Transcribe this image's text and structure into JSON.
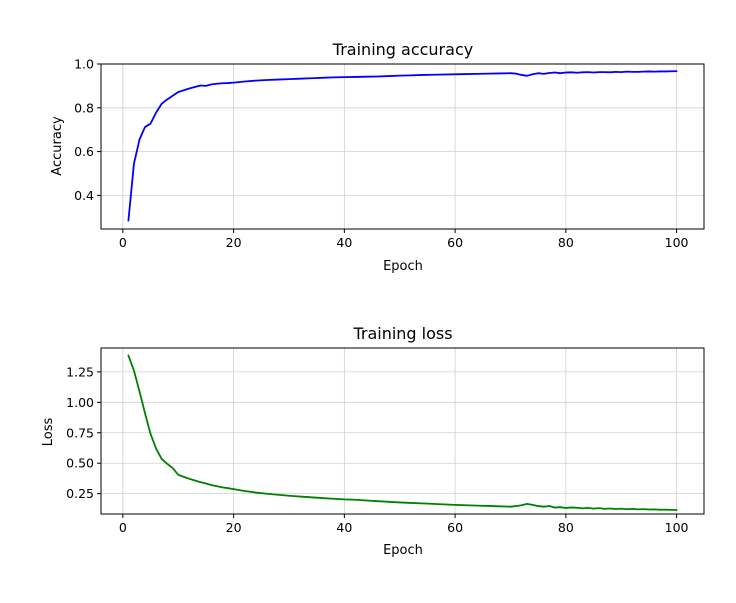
{
  "chart_data": [
    {
      "type": "line",
      "title": "Training accuracy",
      "xlabel": "Epoch",
      "ylabel": "Accuracy",
      "xlim": [
        -3.95,
        104.95
      ],
      "ylim": [
        0.2465,
        1.0
      ],
      "xticks": [
        0,
        20,
        40,
        60,
        80,
        100
      ],
      "yticks": [
        0.4,
        0.6,
        0.8,
        1.0
      ],
      "xtick_labels": [
        "0",
        "20",
        "40",
        "60",
        "80",
        "100"
      ],
      "ytick_labels": [
        "0.4",
        "0.6",
        "0.8",
        "1.0"
      ],
      "grid": true,
      "color": "#0000ff",
      "series": [
        {
          "x": [
            1,
            2,
            3,
            4,
            5,
            6,
            7,
            8,
            9,
            10,
            11,
            12,
            13,
            14,
            15,
            16,
            17,
            18,
            19,
            20,
            22,
            24,
            26,
            28,
            30,
            32,
            34,
            36,
            38,
            40,
            42,
            44,
            46,
            48,
            50,
            52,
            54,
            56,
            58,
            60,
            62,
            64,
            66,
            68,
            70,
            71,
            72,
            73,
            74,
            75,
            76,
            77,
            78,
            79,
            80,
            81,
            82,
            83,
            84,
            85,
            86,
            87,
            88,
            89,
            90,
            91,
            92,
            93,
            94,
            95,
            96,
            97,
            98,
            99,
            100
          ],
          "y": [
            0.285,
            0.545,
            0.655,
            0.712,
            0.728,
            0.778,
            0.818,
            0.838,
            0.855,
            0.872,
            0.88,
            0.888,
            0.895,
            0.902,
            0.9,
            0.907,
            0.91,
            0.912,
            0.913,
            0.915,
            0.92,
            0.924,
            0.927,
            0.929,
            0.931,
            0.933,
            0.935,
            0.937,
            0.939,
            0.94,
            0.941,
            0.942,
            0.943,
            0.945,
            0.947,
            0.948,
            0.95,
            0.951,
            0.952,
            0.953,
            0.954,
            0.955,
            0.956,
            0.957,
            0.958,
            0.956,
            0.95,
            0.946,
            0.953,
            0.958,
            0.955,
            0.959,
            0.961,
            0.958,
            0.961,
            0.962,
            0.96,
            0.962,
            0.963,
            0.961,
            0.963,
            0.963,
            0.962,
            0.964,
            0.963,
            0.965,
            0.964,
            0.964,
            0.965,
            0.966,
            0.965,
            0.966,
            0.966,
            0.967,
            0.967
          ]
        }
      ]
    },
    {
      "type": "line",
      "title": "Training loss",
      "xlabel": "Epoch",
      "ylabel": "Loss",
      "xlim": [
        -3.95,
        104.95
      ],
      "ylim": [
        0.083,
        1.446
      ],
      "xticks": [
        0,
        20,
        40,
        60,
        80,
        100
      ],
      "yticks": [
        0.25,
        0.5,
        0.75,
        1.0,
        1.25
      ],
      "xtick_labels": [
        "0",
        "20",
        "40",
        "60",
        "80",
        "100"
      ],
      "ytick_labels": [
        "0.25",
        "0.50",
        "0.75",
        "1.00",
        "1.25"
      ],
      "grid": true,
      "color": "#008000",
      "series": [
        {
          "x": [
            1,
            2,
            3,
            4,
            5,
            6,
            7,
            8,
            9,
            10,
            11,
            12,
            13,
            14,
            15,
            16,
            17,
            18,
            19,
            20,
            22,
            24,
            26,
            28,
            30,
            32,
            34,
            36,
            38,
            40,
            42,
            44,
            46,
            48,
            50,
            52,
            54,
            56,
            58,
            60,
            62,
            64,
            66,
            68,
            70,
            71,
            72,
            73,
            74,
            75,
            76,
            77,
            78,
            79,
            80,
            81,
            82,
            83,
            84,
            85,
            86,
            87,
            88,
            89,
            90,
            91,
            92,
            93,
            94,
            95,
            96,
            97,
            98,
            99,
            100
          ],
          "y": [
            1.385,
            1.26,
            1.09,
            0.91,
            0.74,
            0.62,
            0.535,
            0.495,
            0.46,
            0.405,
            0.388,
            0.372,
            0.358,
            0.345,
            0.333,
            0.32,
            0.311,
            0.302,
            0.295,
            0.287,
            0.272,
            0.259,
            0.249,
            0.241,
            0.233,
            0.226,
            0.22,
            0.214,
            0.208,
            0.203,
            0.2,
            0.194,
            0.188,
            0.183,
            0.178,
            0.174,
            0.17,
            0.166,
            0.162,
            0.158,
            0.155,
            0.152,
            0.149,
            0.146,
            0.143,
            0.148,
            0.155,
            0.166,
            0.158,
            0.148,
            0.143,
            0.149,
            0.136,
            0.139,
            0.132,
            0.137,
            0.134,
            0.129,
            0.133,
            0.127,
            0.131,
            0.125,
            0.128,
            0.124,
            0.127,
            0.122,
            0.125,
            0.121,
            0.123,
            0.12,
            0.121,
            0.118,
            0.119,
            0.117,
            0.116
          ]
        }
      ]
    }
  ]
}
